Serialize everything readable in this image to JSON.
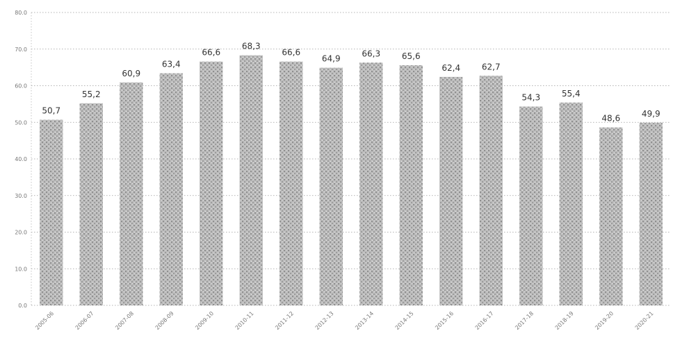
{
  "chart_data": {
    "type": "bar",
    "title": "",
    "xlabel": "",
    "ylabel": "",
    "ylim": [
      0,
      80
    ],
    "yticks": [
      0,
      10,
      20,
      30,
      40,
      50,
      60,
      70,
      80
    ],
    "ytick_labels": [
      "0.0",
      "10.0",
      "20.0",
      "30.0",
      "40.0",
      "50.0",
      "60.0",
      "70.0",
      "80.0"
    ],
    "grid": true,
    "legend": "none",
    "bar_color": "#a7a7a7",
    "categories": [
      "2005-06",
      "2006-07",
      "2007-08",
      "2008-09",
      "2009-10",
      "2010-11",
      "2011-12",
      "2012-13",
      "2013-14",
      "2014-15",
      "2015-16",
      "2016-17",
      "2017-18",
      "2018-19",
      "2019-20",
      "2020-21"
    ],
    "values": [
      50.7,
      55.2,
      60.9,
      63.4,
      66.6,
      68.3,
      66.6,
      64.9,
      66.3,
      65.6,
      62.4,
      62.7,
      54.3,
      55.4,
      48.6,
      49.9
    ],
    "value_labels": [
      "50,7",
      "55,2",
      "60,9",
      "63,4",
      "66,6",
      "68,3",
      "66,6",
      "64,9",
      "66,3",
      "65,6",
      "62,4",
      "62,7",
      "54,3",
      "55,4",
      "48,6",
      "49,9"
    ]
  }
}
